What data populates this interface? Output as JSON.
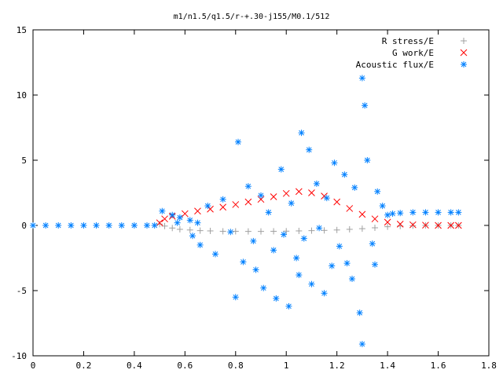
{
  "chart_data": {
    "type": "scatter",
    "title": "m1/n1.5/q1.5/r-+.30-j155/M0.1/512",
    "xlabel": "",
    "ylabel": "",
    "xlim": [
      0,
      1.8
    ],
    "ylim": [
      -10,
      15
    ],
    "x_ticks": [
      0,
      0.2,
      0.4,
      0.6,
      0.8,
      1,
      1.2,
      1.4,
      1.6,
      1.8
    ],
    "x_tick_labels": [
      "0",
      "0.2",
      "0.4",
      "0.6",
      "0.8",
      "1",
      "1.2",
      "1.4",
      "1.6",
      "1.8"
    ],
    "y_ticks": [
      -10,
      -5,
      0,
      5,
      10,
      15
    ],
    "y_tick_labels": [
      "-10",
      "-5",
      "0",
      "5",
      "10",
      "15"
    ],
    "grid": false,
    "legend_position": "top-right",
    "series": [
      {
        "name": "R stress/E",
        "marker": "plus",
        "color": "#a0a0a0",
        "points": [
          [
            0.5,
            0.1
          ],
          [
            0.52,
            -0.05
          ],
          [
            0.55,
            -0.2
          ],
          [
            0.58,
            -0.3
          ],
          [
            0.62,
            -0.35
          ],
          [
            0.66,
            -0.4
          ],
          [
            0.7,
            -0.42
          ],
          [
            0.75,
            -0.45
          ],
          [
            0.8,
            -0.45
          ],
          [
            0.85,
            -0.46
          ],
          [
            0.9,
            -0.46
          ],
          [
            0.95,
            -0.45
          ],
          [
            1.0,
            -0.44
          ],
          [
            1.05,
            -0.42
          ],
          [
            1.1,
            -0.4
          ],
          [
            1.15,
            -0.38
          ],
          [
            1.2,
            -0.35
          ],
          [
            1.25,
            -0.3
          ],
          [
            1.3,
            -0.25
          ],
          [
            1.35,
            -0.18
          ],
          [
            1.4,
            -0.1
          ],
          [
            1.45,
            -0.05
          ],
          [
            1.5,
            -0.02
          ],
          [
            1.55,
            0.0
          ],
          [
            1.6,
            0.0
          ],
          [
            1.65,
            0.0
          ],
          [
            1.68,
            0.0
          ]
        ]
      },
      {
        "name": "G work/E",
        "marker": "cross",
        "color": "#ff0000",
        "points": [
          [
            0.5,
            0.2
          ],
          [
            0.52,
            0.5
          ],
          [
            0.55,
            0.7
          ],
          [
            0.6,
            0.9
          ],
          [
            0.65,
            1.1
          ],
          [
            0.7,
            1.25
          ],
          [
            0.75,
            1.4
          ],
          [
            0.8,
            1.6
          ],
          [
            0.85,
            1.8
          ],
          [
            0.9,
            2.0
          ],
          [
            0.95,
            2.2
          ],
          [
            1.0,
            2.45
          ],
          [
            1.05,
            2.6
          ],
          [
            1.1,
            2.5
          ],
          [
            1.15,
            2.25
          ],
          [
            1.2,
            1.8
          ],
          [
            1.25,
            1.3
          ],
          [
            1.3,
            0.85
          ],
          [
            1.35,
            0.5
          ],
          [
            1.4,
            0.25
          ],
          [
            1.45,
            0.1
          ],
          [
            1.5,
            0.05
          ],
          [
            1.55,
            0.02
          ],
          [
            1.6,
            0.0
          ],
          [
            1.65,
            0.0
          ],
          [
            1.68,
            0.0
          ]
        ]
      },
      {
        "name": "Acoustic flux/E",
        "marker": "star",
        "color": "#0080ff",
        "points": [
          [
            0.0,
            0.0
          ],
          [
            0.05,
            0.0
          ],
          [
            0.1,
            0.0
          ],
          [
            0.15,
            0.0
          ],
          [
            0.2,
            0.0
          ],
          [
            0.25,
            0.0
          ],
          [
            0.3,
            0.0
          ],
          [
            0.35,
            0.0
          ],
          [
            0.4,
            0.0
          ],
          [
            0.45,
            0.0
          ],
          [
            0.48,
            0.0
          ],
          [
            0.51,
            1.1
          ],
          [
            0.55,
            0.8
          ],
          [
            0.58,
            0.6
          ],
          [
            0.62,
            0.4
          ],
          [
            0.65,
            0.2
          ],
          [
            0.57,
            0.2
          ],
          [
            0.63,
            -0.8
          ],
          [
            0.66,
            -1.5
          ],
          [
            0.69,
            1.5
          ],
          [
            0.72,
            -2.2
          ],
          [
            0.75,
            2.0
          ],
          [
            0.78,
            -0.5
          ],
          [
            0.8,
            -5.5
          ],
          [
            0.81,
            6.4
          ],
          [
            0.83,
            -2.8
          ],
          [
            0.85,
            3.0
          ],
          [
            0.87,
            -1.2
          ],
          [
            0.88,
            -3.4
          ],
          [
            0.9,
            2.3
          ],
          [
            0.91,
            -4.8
          ],
          [
            0.93,
            1.0
          ],
          [
            0.95,
            -1.9
          ],
          [
            0.96,
            -5.6
          ],
          [
            0.98,
            4.3
          ],
          [
            0.99,
            -0.7
          ],
          [
            1.01,
            -6.2
          ],
          [
            1.02,
            1.7
          ],
          [
            1.04,
            -2.5
          ],
          [
            1.05,
            -3.8
          ],
          [
            1.06,
            7.1
          ],
          [
            1.07,
            -1.0
          ],
          [
            1.09,
            5.8
          ],
          [
            1.1,
            -4.5
          ],
          [
            1.12,
            3.2
          ],
          [
            1.13,
            -0.2
          ],
          [
            1.15,
            -5.2
          ],
          [
            1.16,
            2.1
          ],
          [
            1.18,
            -3.1
          ],
          [
            1.19,
            4.8
          ],
          [
            1.21,
            -1.6
          ],
          [
            1.23,
            3.9
          ],
          [
            1.24,
            -2.9
          ],
          [
            1.26,
            -4.1
          ],
          [
            1.27,
            2.9
          ],
          [
            1.29,
            -6.7
          ],
          [
            1.3,
            11.3
          ],
          [
            1.31,
            9.2
          ],
          [
            1.3,
            -9.1
          ],
          [
            1.32,
            5.0
          ],
          [
            1.34,
            -1.4
          ],
          [
            1.35,
            -3.0
          ],
          [
            1.36,
            2.6
          ],
          [
            1.38,
            1.5
          ],
          [
            1.4,
            0.8
          ],
          [
            1.42,
            0.9
          ],
          [
            1.45,
            0.95
          ],
          [
            1.5,
            1.0
          ],
          [
            1.55,
            1.0
          ],
          [
            1.6,
            1.0
          ],
          [
            1.65,
            1.0
          ],
          [
            1.68,
            1.0
          ]
        ]
      }
    ]
  }
}
